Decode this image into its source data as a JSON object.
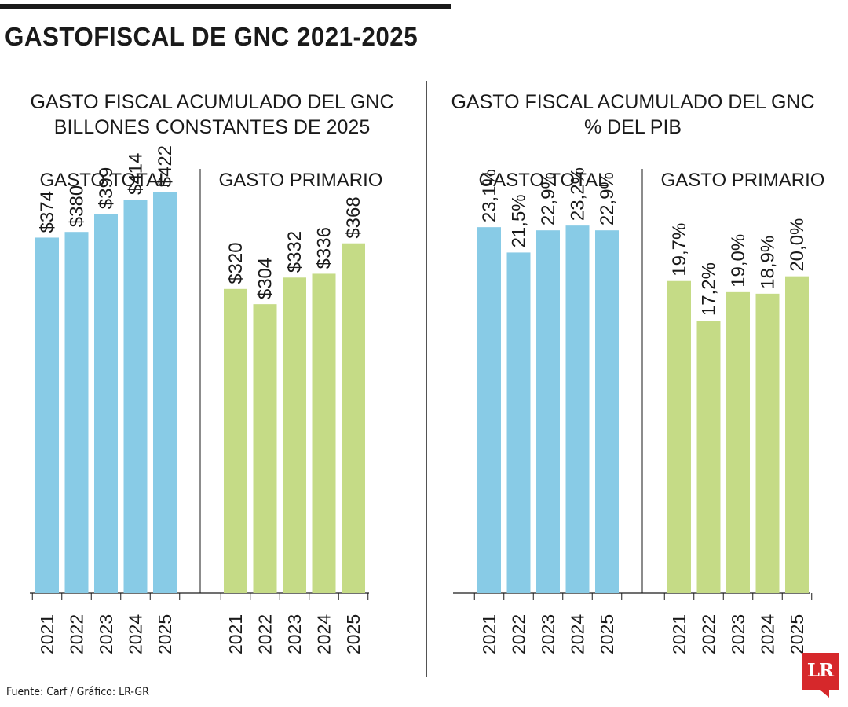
{
  "header": {
    "title": "GASTOFISCAL DE GNC 2021-2025"
  },
  "source": "Fuente: Carf / Gráfico: LR-GR",
  "logo": {
    "text": "LR"
  },
  "colors": {
    "gasto_total": "#88cbe6",
    "gasto_primario": "#c5db86",
    "text": "#1a1a1a"
  },
  "chart_data": [
    {
      "type": "bar",
      "title": "GASTO FISCAL ACUMULADO DEL GNC",
      "subtitle": "BILLONES CONSTANTES DE 2025",
      "ylim": [
        0,
        500
      ],
      "grid": false,
      "groups": [
        {
          "name": "GASTO TOTAL",
          "categories": [
            "2021",
            "2022",
            "2023",
            "2024",
            "2025"
          ],
          "values": [
            374,
            380,
            399,
            414,
            422
          ],
          "labels": [
            "$374",
            "$380",
            "$399",
            "$414",
            "$422"
          ],
          "color": "#88cbe6"
        },
        {
          "name": "GASTO PRIMARIO",
          "categories": [
            "2021",
            "2022",
            "2023",
            "2024",
            "2025"
          ],
          "values": [
            320,
            304,
            332,
            336,
            368
          ],
          "labels": [
            "$320",
            "$304",
            "$332",
            "$336",
            "$368"
          ],
          "color": "#c5db86"
        }
      ]
    },
    {
      "type": "bar",
      "title": "GASTO FISCAL ACUMULADO DEL GNC",
      "subtitle": "% DEL PIB",
      "ylim": [
        0,
        30
      ],
      "grid": false,
      "groups": [
        {
          "name": "GASTO TOTAL",
          "categories": [
            "2021",
            "2022",
            "2023",
            "2024",
            "2025"
          ],
          "values": [
            23.1,
            21.5,
            22.9,
            23.2,
            22.9
          ],
          "labels": [
            "23,1%",
            "21,5%",
            "22,9%",
            "23,2%",
            "22,9%"
          ],
          "color": "#88cbe6"
        },
        {
          "name": "GASTO PRIMARIO",
          "categories": [
            "2021",
            "2022",
            "2023",
            "2024",
            "2025"
          ],
          "values": [
            19.7,
            17.2,
            19.0,
            18.9,
            20.0
          ],
          "labels": [
            "19,7%",
            "17,2%",
            "19,0%",
            "18,9%",
            "20,0%"
          ],
          "color": "#c5db86"
        }
      ]
    }
  ]
}
